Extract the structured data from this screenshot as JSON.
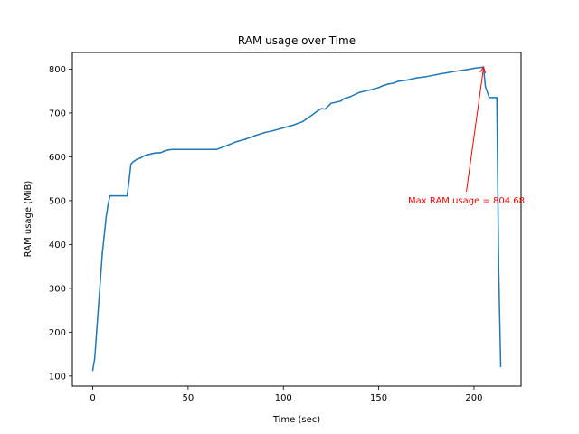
{
  "chart_data": {
    "type": "line",
    "title": "RAM usage over Time",
    "xlabel": "Time (sec)",
    "ylabel": "RAM usage (MiB)",
    "xlim": [
      -10.7,
      224.7
    ],
    "ylim": [
      77.0,
      838.0
    ],
    "xticks": [
      0,
      50,
      100,
      150,
      200
    ],
    "yticks": [
      100,
      200,
      300,
      400,
      500,
      600,
      700,
      800
    ],
    "grid": false,
    "line_color": "#1f77b4",
    "series": [
      {
        "x": [
          0,
          1,
          2,
          3,
          4,
          5,
          6,
          7,
          8,
          9,
          10,
          12,
          14,
          16,
          18,
          19,
          20,
          21,
          22,
          23,
          24,
          25,
          26,
          27,
          28,
          29,
          30,
          31,
          32,
          33,
          34,
          35,
          36,
          37,
          38,
          39,
          40,
          42,
          45,
          50,
          55,
          60,
          62,
          65,
          70,
          75,
          80,
          85,
          90,
          95,
          100,
          105,
          110,
          112,
          115,
          118,
          120,
          122,
          125,
          127,
          128,
          130,
          132,
          135,
          140,
          145,
          150,
          152,
          155,
          158,
          160,
          165,
          170,
          175,
          180,
          182,
          185,
          190,
          195,
          198,
          200,
          205,
          206,
          208,
          210,
          212,
          213,
          214
        ],
        "y": [
          113,
          140,
          200,
          260,
          320,
          380,
          420,
          462,
          490,
          511,
          511,
          511,
          511,
          511,
          511,
          545,
          583,
          588,
          591,
          594,
          596,
          597,
          600,
          602,
          604,
          605,
          606,
          607,
          608,
          609,
          609,
          609,
          610,
          612,
          614,
          615,
          616,
          617,
          617,
          617,
          617,
          617,
          617,
          617,
          625,
          634,
          640,
          648,
          655,
          660,
          666,
          672,
          680,
          686,
          695,
          705,
          710,
          709,
          722,
          724,
          725,
          727,
          733,
          737,
          747,
          752,
          758,
          762,
          766,
          768,
          772,
          775,
          780,
          783,
          787,
          789,
          791,
          795,
          798,
          800,
          802,
          804.68,
          760,
          735,
          735,
          735,
          340,
          122
        ]
      }
    ],
    "annotation": {
      "text": "Max RAM usage = 804.68",
      "x": 205,
      "y": 804.68,
      "text_x": 196,
      "text_y": 502,
      "color": "#ff0000"
    }
  }
}
